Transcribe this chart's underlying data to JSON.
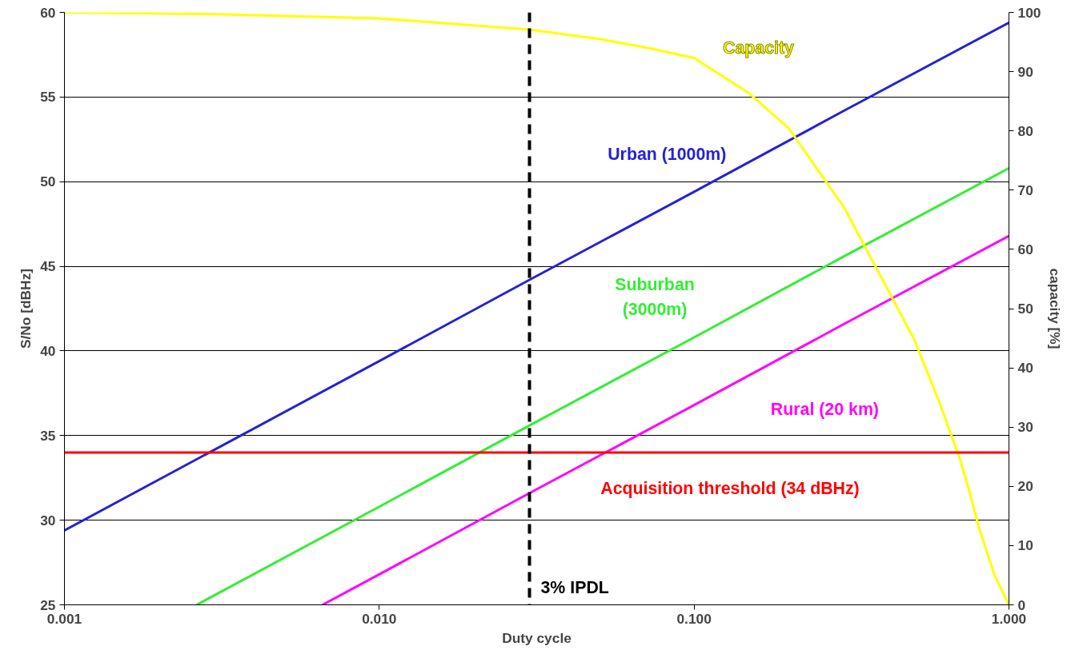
{
  "chart_data": {
    "type": "line",
    "xlabel": "Duty cycle",
    "ylabel": "S/No [dBHz]",
    "y2label": "capacity [%]",
    "log": "x",
    "grid": "y",
    "marker": "none",
    "line_style": "solid",
    "xlim": [
      0.001,
      1
    ],
    "xticks": [
      {
        "value": 0.001,
        "label": "0.001"
      },
      {
        "value": 0.01,
        "label": "0.010"
      },
      {
        "value": 0.1,
        "label": "0.100"
      },
      {
        "value": 1,
        "label": "1.000"
      }
    ],
    "ylim": [
      25,
      60
    ],
    "yticks": [
      25,
      30,
      35,
      40,
      45,
      50,
      55,
      60
    ],
    "y2lim": [
      0,
      100
    ],
    "y2ticks": [
      0,
      10,
      20,
      30,
      40,
      50,
      60,
      70,
      80,
      90,
      100
    ],
    "series": [
      {
        "name": "Urban (1000m)",
        "color": "#2222d8",
        "x": [
          0.001,
          0.01,
          0.03,
          0.1,
          0.3,
          1
        ],
        "values": [
          29.4,
          39.4,
          44.2,
          49.4,
          54.2,
          59.4
        ]
      },
      {
        "name": "Suburban\n(3000m)",
        "color": "#33ee33",
        "x": [
          0.00263,
          0.01,
          0.03,
          0.1,
          0.3,
          1
        ],
        "values": [
          25,
          30.8,
          35.6,
          40.8,
          45.6,
          50.8
        ]
      },
      {
        "name": "Rural (20 km)",
        "color": "#ff00ff",
        "x": [
          0.0066,
          0.01,
          0.03,
          0.1,
          0.3,
          1
        ],
        "values": [
          25,
          26.8,
          31.6,
          36.8,
          41.6,
          46.8
        ]
      },
      {
        "name": "Capacity",
        "color": "#ffff00",
        "axis": "y2",
        "x": [
          0.001,
          0.003,
          0.01,
          0.03,
          0.05,
          0.07,
          0.1,
          0.15,
          0.2,
          0.3,
          0.4,
          0.5,
          0.6,
          0.7,
          0.75,
          0.8,
          0.9,
          1
        ],
        "values": [
          100,
          99.7,
          99,
          97.1,
          95.5,
          94.1,
          92.3,
          86.3,
          80.4,
          67,
          54.5,
          44.8,
          34.3,
          24.5,
          19,
          13.3,
          5,
          0
        ]
      }
    ],
    "ref_lines": [
      {
        "axis": "y",
        "value": 34,
        "label": "Acquisition threshold (34 dBHz)",
        "color": "#ff0000",
        "line_style": "solid"
      },
      {
        "axis": "x",
        "value": 0.03,
        "label": "3% IPDL",
        "color": "#000000",
        "line_style": "dashed"
      }
    ]
  }
}
